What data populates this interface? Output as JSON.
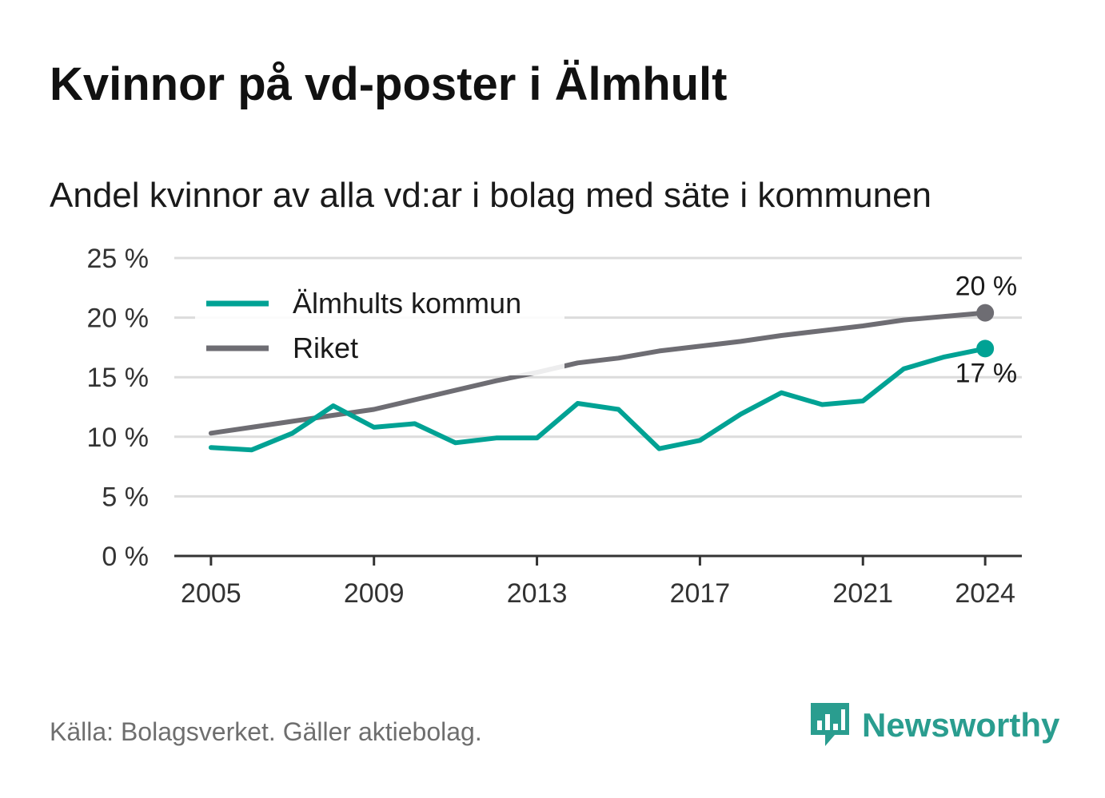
{
  "title": "Kvinnor på vd-poster i Älmhult",
  "subtitle": "Andel kvinnor av alla vd:ar i bolag med säte i kommunen",
  "source": "Källa: Bolagsverket. Gäller aktiebolag.",
  "brand": "Newsworthy",
  "chart_data": {
    "type": "line",
    "x": [
      2005,
      2006,
      2007,
      2008,
      2009,
      2010,
      2011,
      2012,
      2013,
      2014,
      2015,
      2016,
      2017,
      2018,
      2019,
      2020,
      2021,
      2022,
      2023,
      2024
    ],
    "x_ticks": [
      "2005",
      "2009",
      "2013",
      "2017",
      "2021",
      "2024"
    ],
    "y_ticks": [
      "0 %",
      "5 %",
      "10 %",
      "15 %",
      "20 %",
      "25 %"
    ],
    "ylim": [
      0,
      25
    ],
    "grid": true,
    "legend_position": "top-left",
    "series": [
      {
        "name": "Älmhults kommun",
        "color": "#00a294",
        "values": [
          9.1,
          8.9,
          10.3,
          12.6,
          10.8,
          11.1,
          9.5,
          9.9,
          9.9,
          12.8,
          12.3,
          9.0,
          9.7,
          11.9,
          13.7,
          12.7,
          13.0,
          15.7,
          16.7,
          17.4
        ],
        "end_label": "17 %"
      },
      {
        "name": "Riket",
        "color": "#6e6d73",
        "values": [
          10.3,
          10.8,
          11.3,
          11.8,
          12.3,
          13.1,
          13.9,
          14.7,
          15.4,
          16.2,
          16.6,
          17.2,
          17.6,
          18.0,
          18.5,
          18.9,
          19.3,
          19.8,
          20.1,
          20.4
        ],
        "end_label": "20 %"
      }
    ]
  }
}
